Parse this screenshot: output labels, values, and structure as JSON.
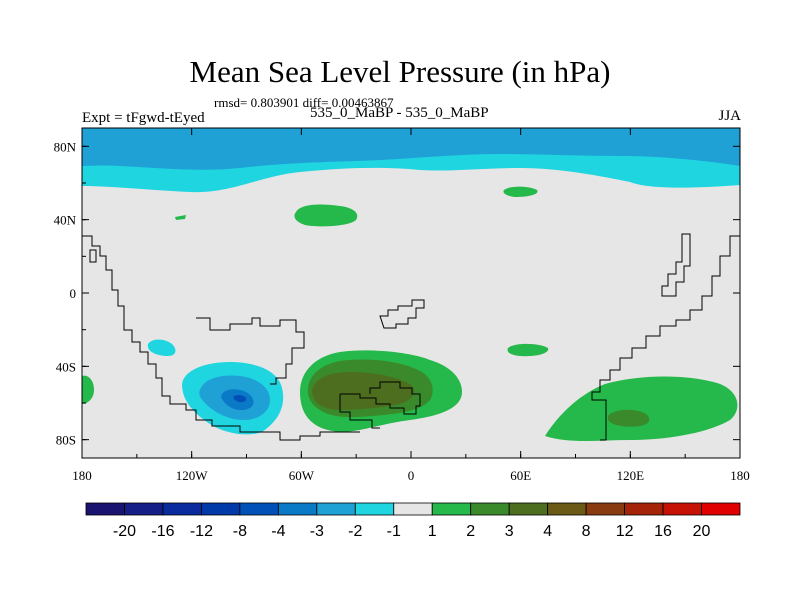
{
  "header": {
    "title": "Mean Sea Level Pressure (in hPa)",
    "stats": "rmsd= 0.803901 diff= 0.00463867",
    "left_label": "Expt = tFgwd-tEyed",
    "center_label": "535_0_MaBP - 535_0_MaBP",
    "right_label": "JJA"
  },
  "chart_data": {
    "type": "contour-map",
    "title": "Mean Sea Level Pressure (in hPa)",
    "x_ticks": [
      "180",
      "120W",
      "60W",
      "0",
      "60E",
      "120E",
      "180"
    ],
    "x_values": [
      -180,
      -120,
      -60,
      0,
      60,
      120,
      180
    ],
    "y_ticks": [
      "80N",
      "40N",
      "0",
      "40S",
      "80S"
    ],
    "y_values": [
      80,
      40,
      0,
      -40,
      -80
    ],
    "xlim": [
      -180,
      180
    ],
    "ylim": [
      -90,
      90
    ],
    "colorbar": {
      "labels": [
        "-20",
        "-16",
        "-12",
        "-8",
        "-4",
        "-3",
        "-2",
        "-1",
        "1",
        "2",
        "3",
        "4",
        "8",
        "12",
        "16",
        "20"
      ],
      "colors": [
        "#1a1470",
        "#151d86",
        "#0a2b9e",
        "#0039a8",
        "#0050b8",
        "#0a7ac6",
        "#1fa1d6",
        "#1fd5e0",
        "#e6e6e6",
        "#25b84a",
        "#3a8a2c",
        "#4c6e1e",
        "#6a5a15",
        "#8a3a10",
        "#a52308",
        "#c61204",
        "#e00000"
      ]
    },
    "regions": [
      {
        "name": "Arctic negative band",
        "level": "-2 to -1",
        "lon_range": [
          -180,
          180
        ],
        "lat_range": [
          50,
          90
        ]
      },
      {
        "name": "Arctic core",
        "level": "-3 to -2",
        "lon_range": [
          -180,
          180
        ],
        "lat_range": [
          74,
          90
        ]
      },
      {
        "name": "South Pacific low",
        "level": "-4 to -1",
        "center": [
          -90,
          -57
        ]
      },
      {
        "name": "South Atlantic high",
        "level": "1 to 4",
        "center": [
          -20,
          -52
        ]
      },
      {
        "name": "Indian Ocean high",
        "level": "1 to 3",
        "center": [
          115,
          -67
        ]
      },
      {
        "name": "North Atlantic high",
        "level": "1 to 2",
        "center": [
          -35,
          45
        ]
      },
      {
        "name": "North Pacific high",
        "level": "1 to 2",
        "center": [
          60,
          57
        ]
      }
    ]
  }
}
